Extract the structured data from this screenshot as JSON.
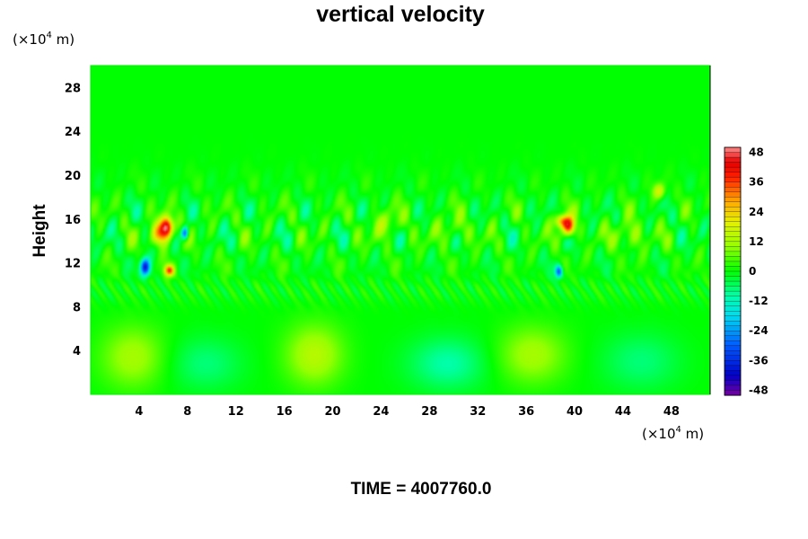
{
  "chart_data": {
    "type": "heatmap",
    "title": "vertical velocity",
    "xlabel": "",
    "ylabel": "Height",
    "x_unit": {
      "prefix": "(×10",
      "exp": "4",
      "suffix": " m)"
    },
    "y_unit": {
      "prefix": "(×10",
      "exp": "4",
      "suffix": " m)"
    },
    "xlim": [
      0,
      51.2
    ],
    "ylim": [
      0,
      30
    ],
    "x_ticks": [
      4,
      8,
      12,
      16,
      20,
      24,
      28,
      32,
      36,
      40,
      44,
      48
    ],
    "x_tick_labels": [
      "4",
      "8",
      "12",
      "16",
      "20",
      "24",
      "28",
      "32",
      "36",
      "40",
      "44",
      "48"
    ],
    "y_ticks": [
      4,
      8,
      12,
      16,
      20,
      24,
      28
    ],
    "y_tick_labels": [
      "4",
      "8",
      "12",
      "16",
      "20",
      "24",
      "28"
    ],
    "colorbar": {
      "range": [
        -50,
        50
      ],
      "ticks": [
        48,
        36,
        24,
        12,
        0,
        -12,
        -24,
        -36,
        -48
      ],
      "tick_labels": [
        "48",
        "36",
        "24",
        "12",
        "0",
        "-12",
        "-24",
        "-36",
        "-48"
      ]
    },
    "features": [
      {
        "x": 3.5,
        "y": 3.4,
        "value": 12,
        "sx": 2.6,
        "sy": 2.8
      },
      {
        "x": 18.5,
        "y": 3.6,
        "value": 14,
        "sx": 2.4,
        "sy": 2.8
      },
      {
        "x": 36.5,
        "y": 3.6,
        "value": 12,
        "sx": 2.8,
        "sy": 2.6
      },
      {
        "x": 9.5,
        "y": 2.8,
        "value": -7,
        "sx": 3.0,
        "sy": 2.4
      },
      {
        "x": 29.5,
        "y": 2.8,
        "value": -10,
        "sx": 3.2,
        "sy": 2.4
      },
      {
        "x": 45.5,
        "y": 3.0,
        "value": -7,
        "sx": 3.2,
        "sy": 2.6
      },
      {
        "x": 6.3,
        "y": 15.3,
        "value": 46,
        "sx": 0.5,
        "sy": 0.9
      },
      {
        "x": 5.8,
        "y": 14.6,
        "value": 30,
        "sx": 0.7,
        "sy": 1.0
      },
      {
        "x": 7.8,
        "y": 14.7,
        "value": -34,
        "sx": 0.3,
        "sy": 0.6
      },
      {
        "x": 4.5,
        "y": 11.6,
        "value": -38,
        "sx": 0.4,
        "sy": 0.8
      },
      {
        "x": 6.5,
        "y": 11.3,
        "value": 34,
        "sx": 0.4,
        "sy": 0.5
      },
      {
        "x": 39.5,
        "y": 15.3,
        "value": 42,
        "sx": 0.5,
        "sy": 0.9
      },
      {
        "x": 38.9,
        "y": 15.8,
        "value": 28,
        "sx": 0.5,
        "sy": 0.6
      },
      {
        "x": 38.7,
        "y": 11.2,
        "value": -32,
        "sx": 0.3,
        "sy": 0.6
      },
      {
        "x": 47.0,
        "y": 18.5,
        "value": 18,
        "sx": 0.5,
        "sy": 0.7
      },
      {
        "x": 24.5,
        "y": 15.5,
        "value": 10,
        "sx": 1.2,
        "sy": 1.2
      },
      {
        "x": 30.0,
        "y": 15.0,
        "value": 8,
        "sx": 1.3,
        "sy": 1.2
      },
      {
        "x": 44.5,
        "y": 14.5,
        "value": 12,
        "sx": 1.2,
        "sy": 1.2
      }
    ]
  },
  "footer": {
    "time_label": "TIME = 4007760.0"
  },
  "colors": {
    "axis": "#000000",
    "background": "#00ff00"
  }
}
